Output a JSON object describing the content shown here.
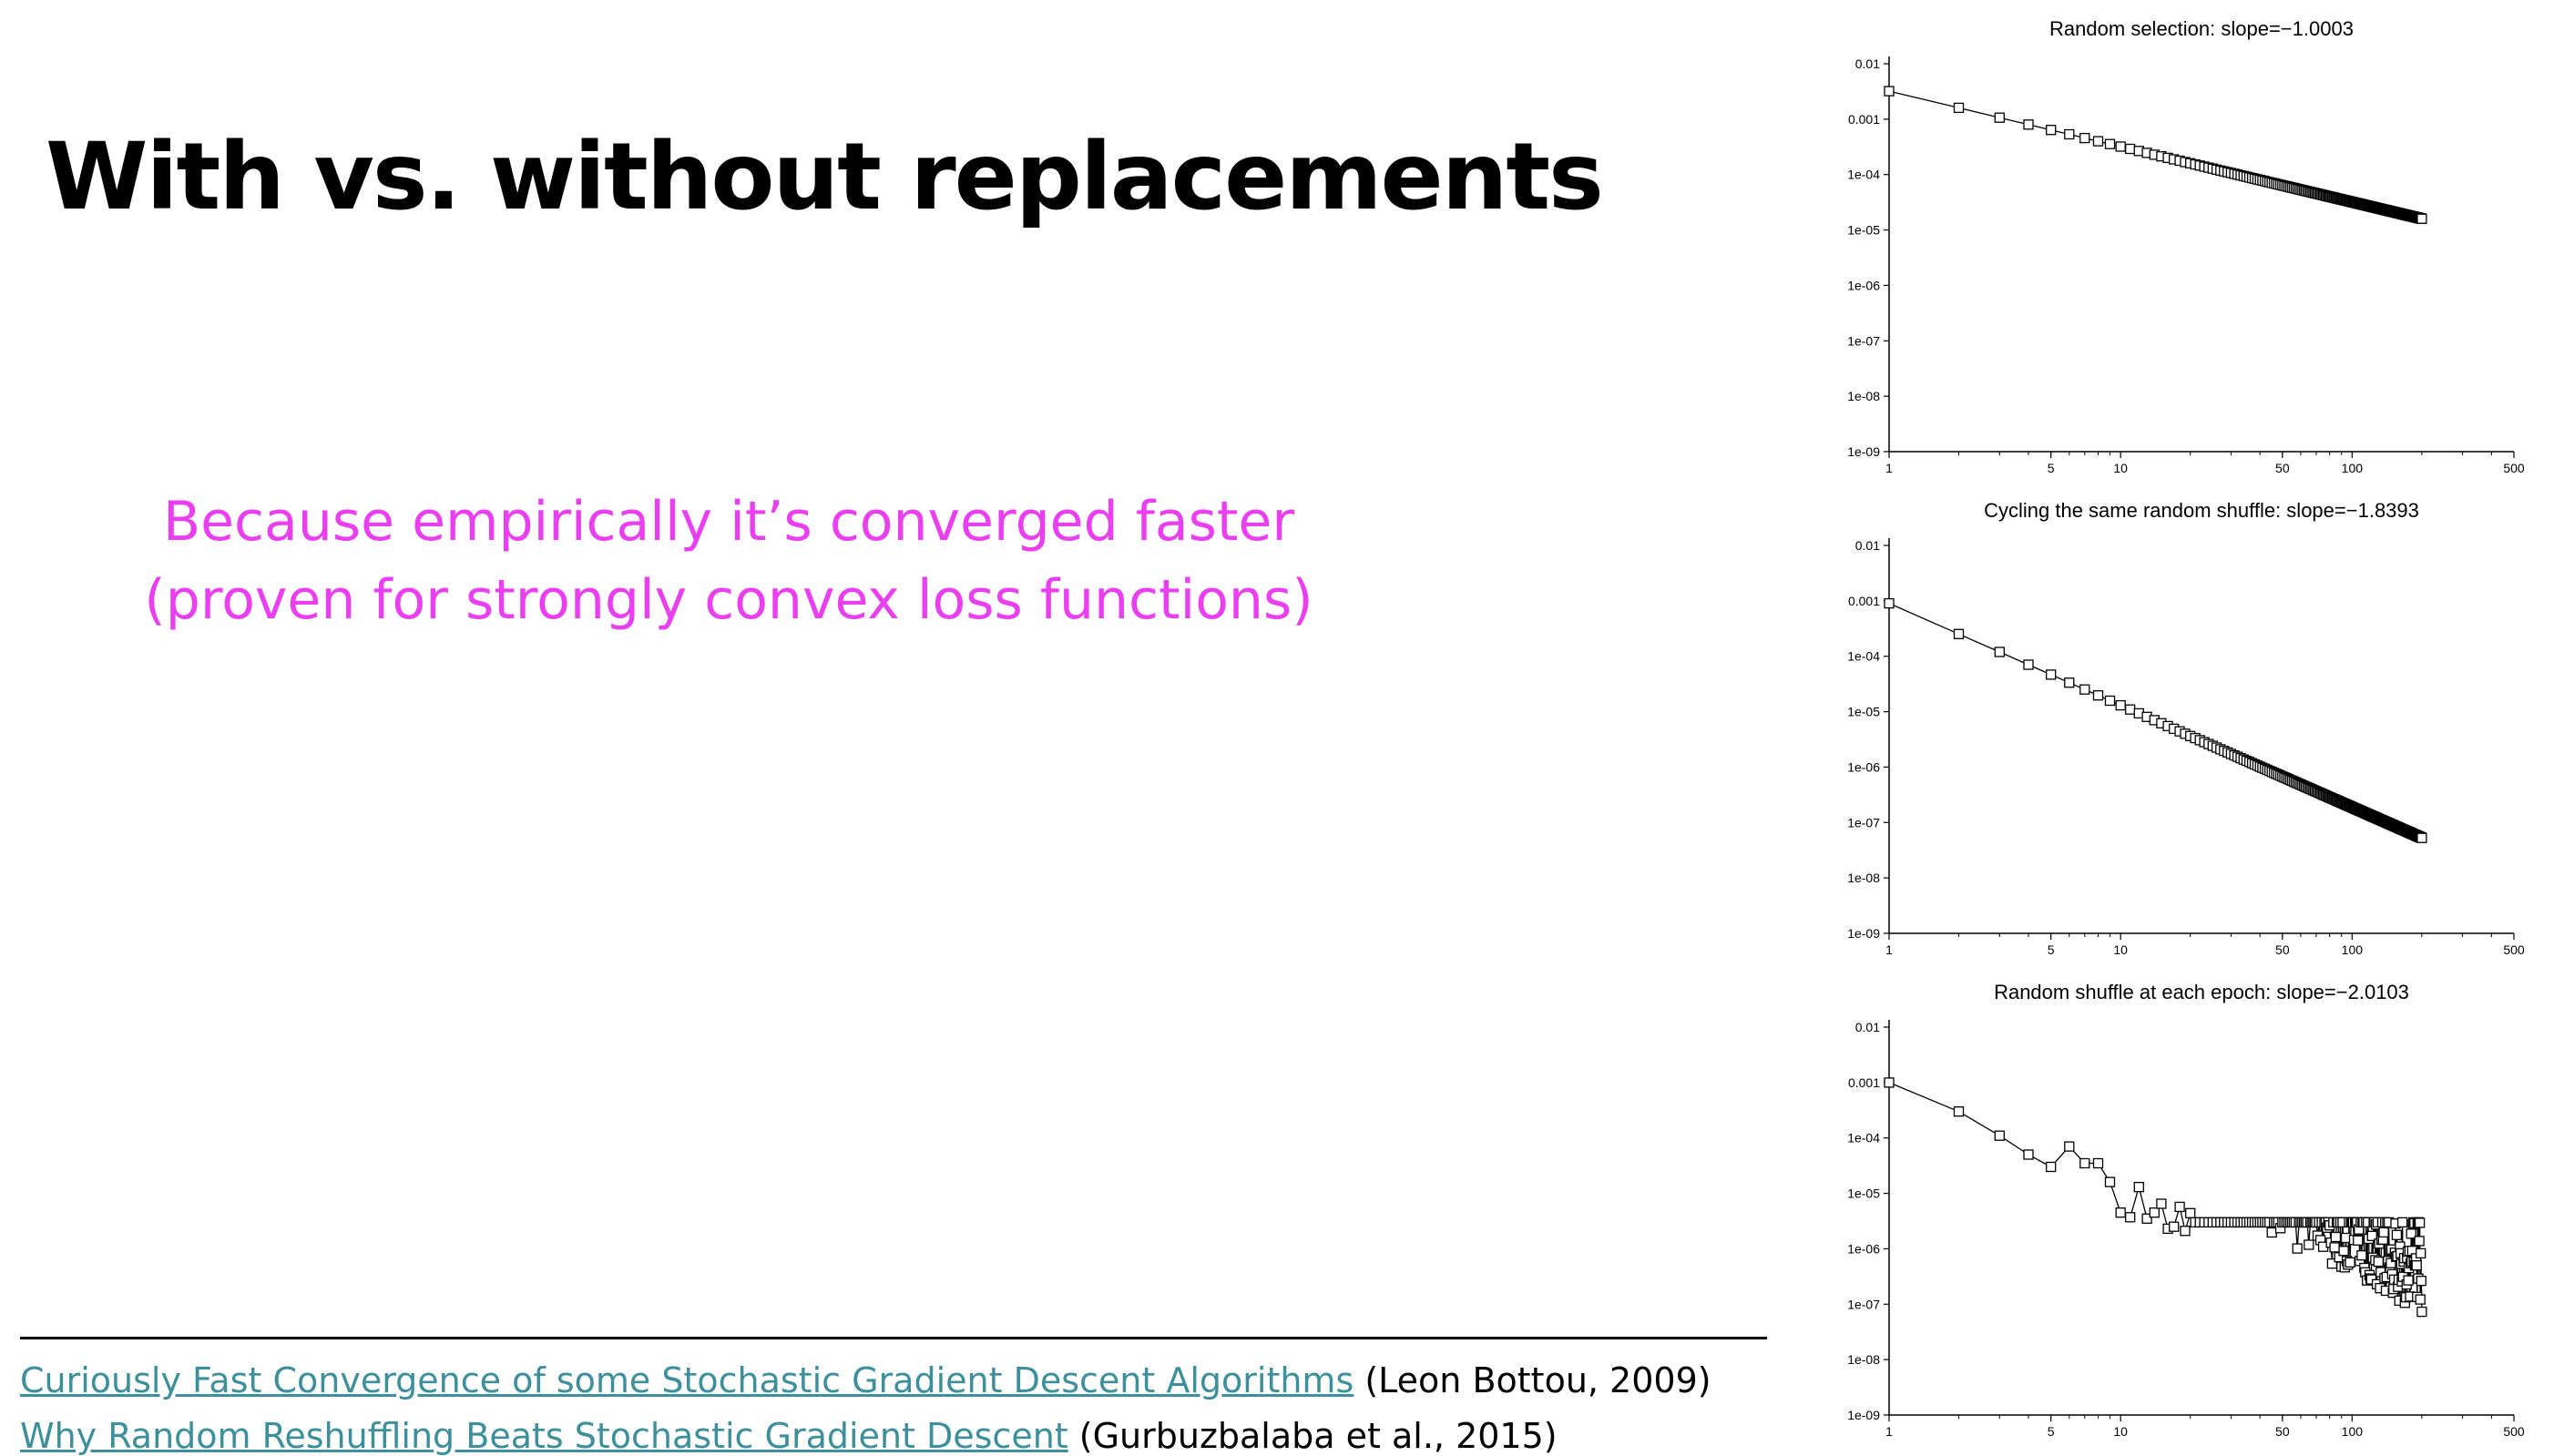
{
  "slide": {
    "title": "With vs. without replacements",
    "subtitle_line1": "Because empirically it’s converged faster",
    "subtitle_line2": "(proven for strongly convex loss functions)"
  },
  "references": [
    {
      "link_text": "Curiously Fast Convergence of some Stochastic Gradient Descent Algorithms",
      "citation": " (Leon Bottou, 2009)"
    },
    {
      "link_text": "Why Random Reshuffling Beats Stochastic Gradient Descent",
      "citation": " (Gurbuzbalaba et al., 2015)"
    }
  ],
  "colors": {
    "subtitle": "#ea3ff0",
    "link": "#3d8f9c",
    "text": "#000000"
  },
  "chart_data": [
    {
      "type": "line",
      "title": "Random selection: slope=−1.0003",
      "x_scale": "log",
      "y_scale": "log",
      "xlim": [
        1,
        500
      ],
      "ylim": [
        1e-09,
        0.01
      ],
      "x_ticks": [
        1,
        5,
        10,
        50,
        100,
        500
      ],
      "x_tick_labels": [
        "1",
        "5",
        "10",
        "50",
        "100",
        "500"
      ],
      "y_ticks": [
        1e-09,
        1e-08,
        1e-07,
        1e-06,
        1e-05,
        0.0001,
        0.001,
        0.01
      ],
      "y_tick_labels": [
        "1e-09",
        "1e-08",
        "1e-07",
        "1e-06",
        "1e-05",
        "1e-04",
        "0.001",
        "0.01"
      ],
      "marker": "open-square",
      "series": [
        {
          "pattern": "power",
          "x_start": 1,
          "x_end": 200,
          "y_at_1": 0.0032,
          "slope": -1.0003
        }
      ]
    },
    {
      "type": "line",
      "title": "Cycling the same random shuffle: slope=−1.8393",
      "x_scale": "log",
      "y_scale": "log",
      "xlim": [
        1,
        500
      ],
      "ylim": [
        1e-09,
        0.01
      ],
      "x_ticks": [
        1,
        5,
        10,
        50,
        100,
        500
      ],
      "x_tick_labels": [
        "1",
        "5",
        "10",
        "50",
        "100",
        "500"
      ],
      "y_ticks": [
        1e-09,
        1e-08,
        1e-07,
        1e-06,
        1e-05,
        0.0001,
        0.001,
        0.01
      ],
      "y_tick_labels": [
        "1e-09",
        "1e-08",
        "1e-07",
        "1e-06",
        "1e-05",
        "1e-04",
        "0.001",
        "0.01"
      ],
      "marker": "open-square",
      "series": [
        {
          "pattern": "power",
          "x_start": 1,
          "x_end": 200,
          "y_at_1": 0.0009,
          "slope": -1.8393
        }
      ]
    },
    {
      "type": "line",
      "title": "Random shuffle at each epoch: slope=−2.0103",
      "x_scale": "log",
      "y_scale": "log",
      "xlim": [
        1,
        500
      ],
      "ylim": [
        1e-09,
        0.01
      ],
      "x_ticks": [
        1,
        5,
        10,
        50,
        100,
        500
      ],
      "x_tick_labels": [
        "1",
        "5",
        "10",
        "50",
        "100",
        "500"
      ],
      "y_ticks": [
        1e-09,
        1e-08,
        1e-07,
        1e-06,
        1e-05,
        0.0001,
        0.001,
        0.01
      ],
      "y_tick_labels": [
        "1e-09",
        "1e-08",
        "1e-07",
        "1e-06",
        "1e-05",
        "1e-04",
        "0.001",
        "0.01"
      ],
      "marker": "open-square",
      "series": [
        {
          "pattern": "noisy",
          "x_start": 1,
          "x_end": 200,
          "y_at_1": 0.001,
          "slope": -2.0103,
          "head_points": [
            [
              1,
              0.001
            ],
            [
              2,
              0.0003
            ],
            [
              3,
              0.00011
            ],
            [
              4,
              5e-05
            ],
            [
              5,
              3e-05
            ],
            [
              6,
              7e-05
            ],
            [
              7,
              3.5e-05
            ],
            [
              8,
              3.5e-05
            ],
            [
              9,
              1.6e-05
            ],
            [
              10,
              4.5e-06
            ],
            [
              11,
              3.7e-06
            ],
            [
              12,
              1.3e-05
            ],
            [
              13,
              3.5e-06
            ],
            [
              14,
              4.5e-06
            ],
            [
              15,
              6.5e-06
            ],
            [
              16,
              2.3e-06
            ],
            [
              17,
              2.5e-06
            ],
            [
              18,
              5.7e-06
            ],
            [
              19,
              2.1e-06
            ],
            [
              20,
              4.4e-06
            ]
          ]
        }
      ]
    }
  ]
}
